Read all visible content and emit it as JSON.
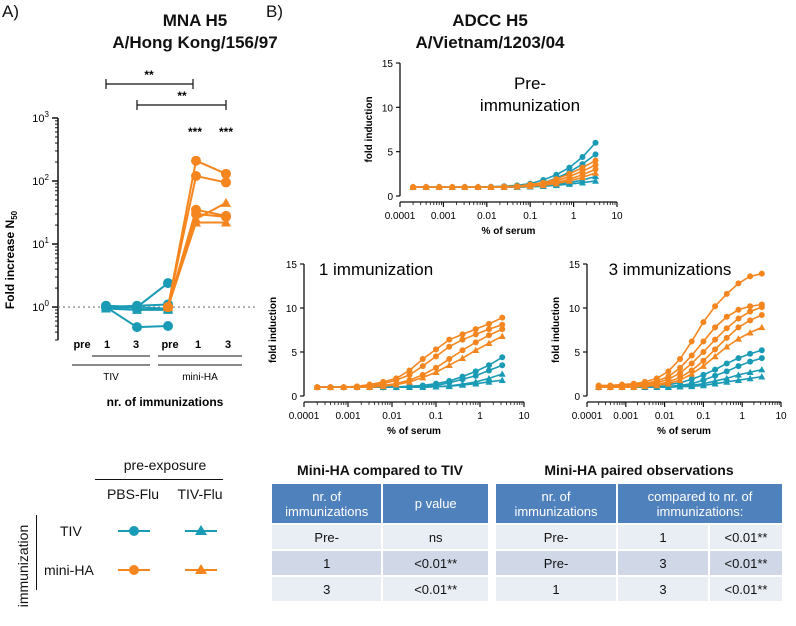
{
  "panels": {
    "a": "A)",
    "b": "B)"
  },
  "mna": {
    "title1": "MNA H5",
    "title2": "A/Hong Kong/156/97",
    "ylabel": "Fold increase N",
    "ylabel_sub": "50",
    "xlabel": "nr. of immunizations",
    "ticks": [
      "pre",
      "1",
      "3",
      "pre",
      "1",
      "3"
    ],
    "groups": [
      "TIV",
      "mini-HA"
    ],
    "sig_brackets": [
      "**",
      "**"
    ],
    "sig_stars": [
      "***",
      "***"
    ]
  },
  "adcc": {
    "title1": "ADCC H5",
    "title2": "A/Vietnam/1203/04"
  },
  "tables": {
    "t1": {
      "title": "Mini-HA compared to TIV",
      "headers": [
        "nr. of immunizations",
        "p value"
      ],
      "rows": [
        [
          "Pre-",
          "ns"
        ],
        [
          "1",
          "<0.01**"
        ],
        [
          "3",
          "<0.01**"
        ]
      ]
    },
    "t2": {
      "title": "Mini-HA paired observations",
      "headers": [
        "nr. of immunizations",
        "compared to nr. of immunizations:"
      ],
      "rows": [
        [
          "Pre-",
          "1",
          "<0.01**"
        ],
        [
          "Pre-",
          "3",
          "<0.01**"
        ],
        [
          "1",
          "3",
          "<0.01**"
        ]
      ]
    }
  },
  "legend": {
    "header": "pre-exposure",
    "cols": [
      "PBS-Flu",
      "TIV-Flu"
    ],
    "rows": [
      "TIV",
      "mini-HA"
    ],
    "side": "immunization"
  },
  "colors": {
    "tiv": "#1a9bb5",
    "minha": "#f5861f",
    "header": "#4f81bd"
  },
  "chart_data": [
    {
      "type": "line",
      "title": "MNA H5 A/Hong Kong/156/97",
      "ylabel": "Fold increase N50",
      "xlabel": "nr. of immunizations",
      "yscale": "log",
      "ylim": [
        0.3,
        1000
      ],
      "yticks": [
        {
          "v": 1,
          "label": "10⁰"
        },
        {
          "v": 10,
          "label": "10¹"
        },
        {
          "v": 100,
          "label": "10²"
        },
        {
          "v": 1000,
          "label": "10³"
        }
      ],
      "reference_line": 1,
      "groups": [
        {
          "name": "TIV",
          "categories": [
            "pre",
            "1",
            "3"
          ],
          "color": "#1a9bb5",
          "series": [
            {
              "marker": "circle",
              "values": [
                1.05,
                1.0,
                2.4
              ]
            },
            {
              "marker": "circle",
              "values": [
                1.0,
                0.48,
                0.5
              ]
            },
            {
              "marker": "circle",
              "values": [
                1.0,
                1.05,
                1.1
              ]
            },
            {
              "marker": "triangle",
              "values": [
                0.95,
                0.9,
                0.9
              ]
            },
            {
              "marker": "triangle",
              "values": [
                1.0,
                0.98,
                0.95
              ]
            }
          ]
        },
        {
          "name": "mini-HA",
          "categories": [
            "pre",
            "1",
            "3"
          ],
          "color": "#f5861f",
          "series": [
            {
              "marker": "circle",
              "values": [
                1.0,
                210,
                130
              ]
            },
            {
              "marker": "circle",
              "values": [
                1.0,
                120,
                95
              ]
            },
            {
              "marker": "circle",
              "values": [
                1.0,
                35,
                28
              ]
            },
            {
              "marker": "circle",
              "values": [
                1.0,
                30,
                27
              ]
            },
            {
              "marker": "triangle",
              "values": [
                1.0,
                25,
                45
              ]
            },
            {
              "marker": "triangle",
              "values": [
                1.0,
                22,
                22
              ]
            }
          ]
        }
      ]
    },
    {
      "type": "line",
      "title": "Pre-immunization",
      "xlabel": "% of serum",
      "ylabel": "fold induction",
      "xscale": "log",
      "xlim": [
        0.0001,
        10
      ],
      "ylim": [
        0,
        15
      ],
      "x": [
        0.0002,
        0.0004,
        0.0008,
        0.0016,
        0.0031,
        0.0063,
        0.0125,
        0.025,
        0.05,
        0.1,
        0.2,
        0.4,
        0.8,
        1.6,
        3.2
      ],
      "series": [
        {
          "group": "TIV",
          "marker": "circle",
          "values": [
            1,
            1,
            1,
            1,
            1,
            1,
            1.05,
            1.1,
            1.2,
            1.4,
            1.8,
            2.4,
            3.2,
            4.4,
            6.0
          ]
        },
        {
          "group": "TIV",
          "marker": "circle",
          "values": [
            1,
            1,
            1,
            1,
            1,
            1,
            1,
            1.05,
            1.1,
            1.2,
            1.5,
            2.0,
            2.7,
            3.6,
            4.7
          ]
        },
        {
          "group": "TIV",
          "marker": "triangle",
          "values": [
            1,
            1,
            1,
            1,
            1,
            1,
            1,
            1,
            1,
            1.05,
            1.1,
            1.2,
            1.35,
            1.5,
            1.7
          ]
        },
        {
          "group": "TIV",
          "marker": "triangle",
          "values": [
            1,
            1,
            1,
            1,
            1,
            1,
            1,
            1,
            1,
            1.05,
            1.1,
            1.3,
            1.5,
            1.8,
            2.2
          ]
        },
        {
          "group": "mini-HA",
          "marker": "circle",
          "values": [
            1,
            1,
            1,
            1,
            1,
            1,
            1,
            1.05,
            1.1,
            1.3,
            1.5,
            1.9,
            2.5,
            3.2,
            4.0
          ]
        },
        {
          "group": "mini-HA",
          "marker": "circle",
          "values": [
            1,
            1,
            1,
            1,
            1,
            1,
            1,
            1.05,
            1.1,
            1.2,
            1.4,
            1.7,
            2.2,
            2.8,
            3.5
          ]
        },
        {
          "group": "mini-HA",
          "marker": "circle",
          "values": [
            1,
            1,
            1,
            1,
            1,
            1,
            1,
            1,
            1.05,
            1.1,
            1.3,
            1.5,
            1.9,
            2.4,
            3.0
          ]
        },
        {
          "group": "mini-HA",
          "marker": "triangle",
          "values": [
            1,
            1,
            1,
            1,
            1,
            1,
            1,
            1,
            1.05,
            1.1,
            1.2,
            1.4,
            1.7,
            2.1,
            2.6
          ]
        }
      ]
    },
    {
      "type": "line",
      "title": "1 immunization",
      "xlabel": "% of serum",
      "ylabel": "fold induction",
      "xscale": "log",
      "xlim": [
        0.0001,
        10
      ],
      "ylim": [
        0,
        15
      ],
      "x": [
        0.0002,
        0.0004,
        0.0008,
        0.0016,
        0.0031,
        0.0063,
        0.0125,
        0.025,
        0.05,
        0.1,
        0.2,
        0.4,
        0.8,
        1.6,
        3.2
      ],
      "series": [
        {
          "group": "TIV",
          "marker": "circle",
          "values": [
            1,
            1,
            1,
            1,
            1,
            1,
            1.05,
            1.1,
            1.2,
            1.4,
            1.7,
            2.2,
            2.8,
            3.5,
            4.4
          ]
        },
        {
          "group": "TIV",
          "marker": "circle",
          "values": [
            1,
            1,
            1,
            1,
            1,
            1,
            1,
            1.05,
            1.1,
            1.2,
            1.5,
            1.9,
            2.3,
            2.9,
            3.5
          ]
        },
        {
          "group": "TIV",
          "marker": "triangle",
          "values": [
            1,
            1,
            1,
            1,
            1,
            1,
            1,
            1,
            1,
            1.05,
            1.1,
            1.25,
            1.4,
            1.6,
            1.8
          ]
        },
        {
          "group": "TIV",
          "marker": "triangle",
          "values": [
            1,
            1,
            1,
            1,
            1,
            1,
            1,
            1,
            1,
            1.05,
            1.15,
            1.35,
            1.6,
            2.0,
            2.5
          ]
        },
        {
          "group": "mini-HA",
          "marker": "circle",
          "values": [
            1,
            1,
            1,
            1.1,
            1.3,
            1.6,
            2.0,
            2.9,
            4.2,
            5.3,
            6.4,
            7.0,
            7.6,
            8.2,
            8.9
          ]
        },
        {
          "group": "mini-HA",
          "marker": "circle",
          "values": [
            1,
            1,
            1,
            1.05,
            1.2,
            1.4,
            1.8,
            2.4,
            3.4,
            4.5,
            5.6,
            6.4,
            7.0,
            7.6,
            8.1
          ]
        },
        {
          "group": "mini-HA",
          "marker": "circle",
          "values": [
            1,
            1,
            1,
            1,
            1.1,
            1.2,
            1.4,
            1.8,
            2.4,
            3.2,
            4.2,
            5.2,
            6.1,
            6.9,
            7.6
          ]
        },
        {
          "group": "mini-HA",
          "marker": "triangle",
          "values": [
            1,
            1,
            1,
            1,
            1,
            1.1,
            1.3,
            1.6,
            2.1,
            2.7,
            3.5,
            4.3,
            5.2,
            6.0,
            6.8
          ]
        }
      ]
    },
    {
      "type": "line",
      "title": "3 immunizations",
      "xlabel": "% of serum",
      "ylabel": "fold induction",
      "xscale": "log",
      "xlim": [
        0.0001,
        10
      ],
      "ylim": [
        0,
        15
      ],
      "x": [
        0.0002,
        0.0004,
        0.0008,
        0.0016,
        0.0031,
        0.0063,
        0.0125,
        0.025,
        0.05,
        0.1,
        0.2,
        0.4,
        0.8,
        1.6,
        3.2
      ],
      "series": [
        {
          "group": "TIV",
          "marker": "circle",
          "values": [
            1.1,
            1.1,
            1.1,
            1.1,
            1.1,
            1.2,
            1.3,
            1.5,
            1.9,
            2.4,
            3.0,
            3.7,
            4.3,
            4.8,
            5.2
          ]
        },
        {
          "group": "TIV",
          "marker": "circle",
          "values": [
            1,
            1,
            1,
            1,
            1,
            1.05,
            1.1,
            1.2,
            1.4,
            1.8,
            2.3,
            2.8,
            3.4,
            3.9,
            4.3
          ]
        },
        {
          "group": "TIV",
          "marker": "triangle",
          "values": [
            1,
            1,
            1,
            1,
            1,
            1,
            1.05,
            1.1,
            1.2,
            1.4,
            1.7,
            2.0,
            2.4,
            2.7,
            3.0
          ]
        },
        {
          "group": "TIV",
          "marker": "triangle",
          "values": [
            1,
            1,
            1,
            1,
            1,
            1,
            1,
            1.05,
            1.1,
            1.2,
            1.4,
            1.6,
            1.8,
            2.0,
            2.2
          ]
        },
        {
          "group": "mini-HA",
          "marker": "circle",
          "values": [
            1.2,
            1.2,
            1.3,
            1.4,
            1.6,
            2.0,
            2.8,
            4.2,
            6.2,
            8.4,
            10.2,
            11.6,
            12.8,
            13.6,
            13.9
          ]
        },
        {
          "group": "mini-HA",
          "marker": "circle",
          "values": [
            1.1,
            1.1,
            1.2,
            1.3,
            1.4,
            1.7,
            2.2,
            3.2,
            4.6,
            6.2,
            7.8,
            9.0,
            9.8,
            10.2,
            10.4
          ]
        },
        {
          "group": "mini-HA",
          "marker": "circle",
          "values": [
            1,
            1,
            1.1,
            1.2,
            1.3,
            1.5,
            1.9,
            2.6,
            3.7,
            5.0,
            6.4,
            7.7,
            8.8,
            9.6,
            10.1
          ]
        },
        {
          "group": "mini-HA",
          "marker": "circle",
          "values": [
            1,
            1,
            1,
            1.1,
            1.2,
            1.3,
            1.6,
            2.1,
            2.9,
            4.0,
            5.3,
            6.6,
            7.8,
            8.6,
            9.2
          ]
        },
        {
          "group": "mini-HA",
          "marker": "triangle",
          "values": [
            1,
            1,
            1,
            1,
            1.1,
            1.2,
            1.4,
            1.8,
            2.5,
            3.4,
            4.5,
            5.6,
            6.5,
            7.2,
            7.8
          ]
        }
      ]
    }
  ]
}
